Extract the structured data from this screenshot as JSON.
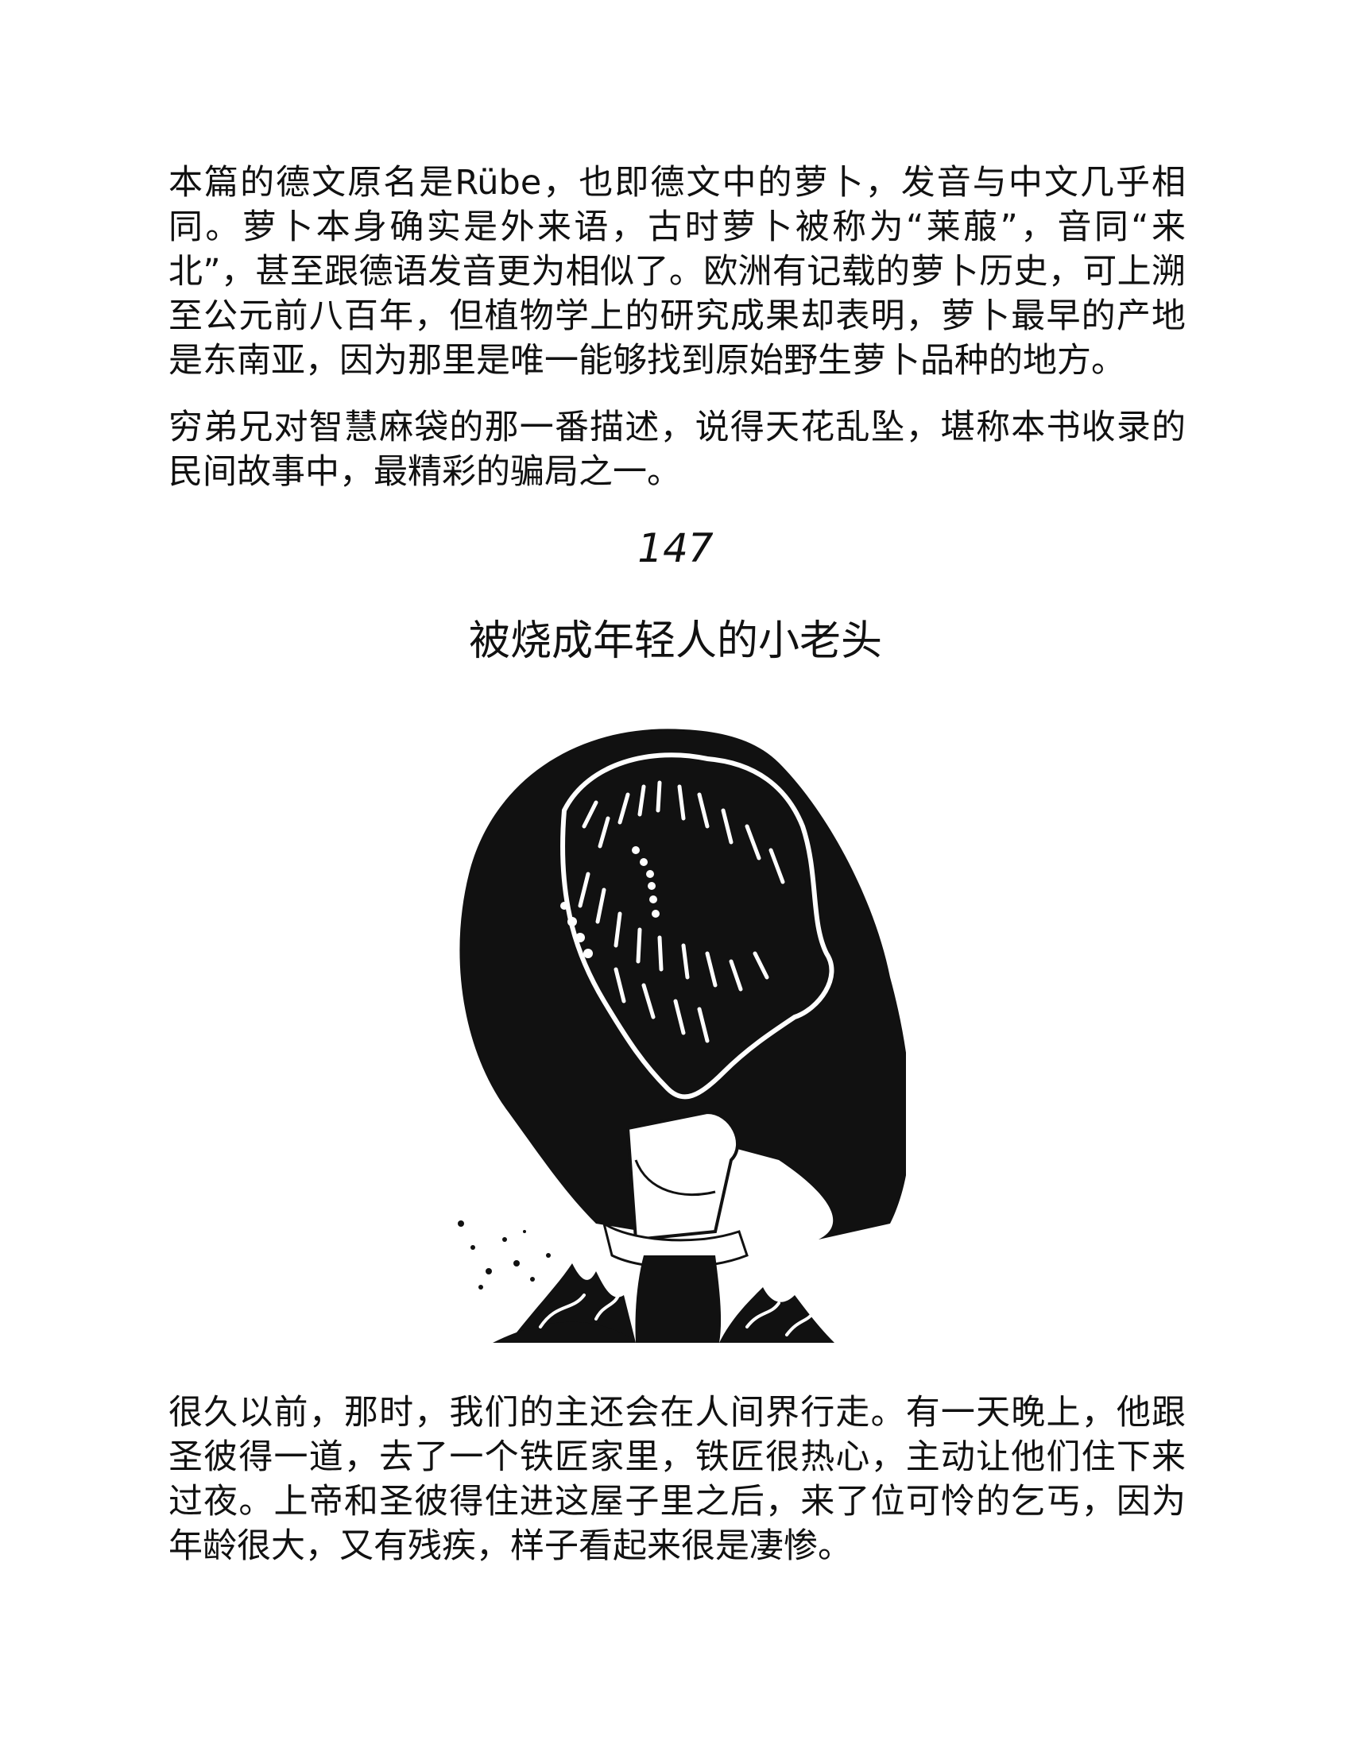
{
  "paragraphs": [
    "本篇的德文原名是Rübe，也即德文中的萝卜，发音与中文几乎相同。萝卜本身确实是外来语，古时萝卜被称为“莱菔”，音同“来北”，甚至跟德语发音更为相似了。欧洲有记载的萝卜历史，可上溯至公元前八百年，但植物学上的研究成果却表明，萝卜最早的产地是东南亚，因为那里是唯一能够找到原始野生萝卜品种的地方。",
    "穷弟兄对智慧麻袋的那一番描述，说得天花乱坠，堪称本书收录的民间故事中，最精彩的骗局之一。"
  ],
  "story": {
    "number": "147",
    "title": "被烧成年轻人的小老头",
    "opening": "很久以前，那时，我们的主还会在人间界行走。有一天晚上，他跟圣彼得一道，去了一个铁匠家里，铁匠很热心，主动让他们住下来过夜。上帝和圣彼得住进这屋子里之后，来了位可怜的乞丐，因为年龄很大，又有残疾，样子看起来很是凄惨。"
  },
  "illustration": {
    "ink": "#111111",
    "paper": "#ffffff"
  }
}
